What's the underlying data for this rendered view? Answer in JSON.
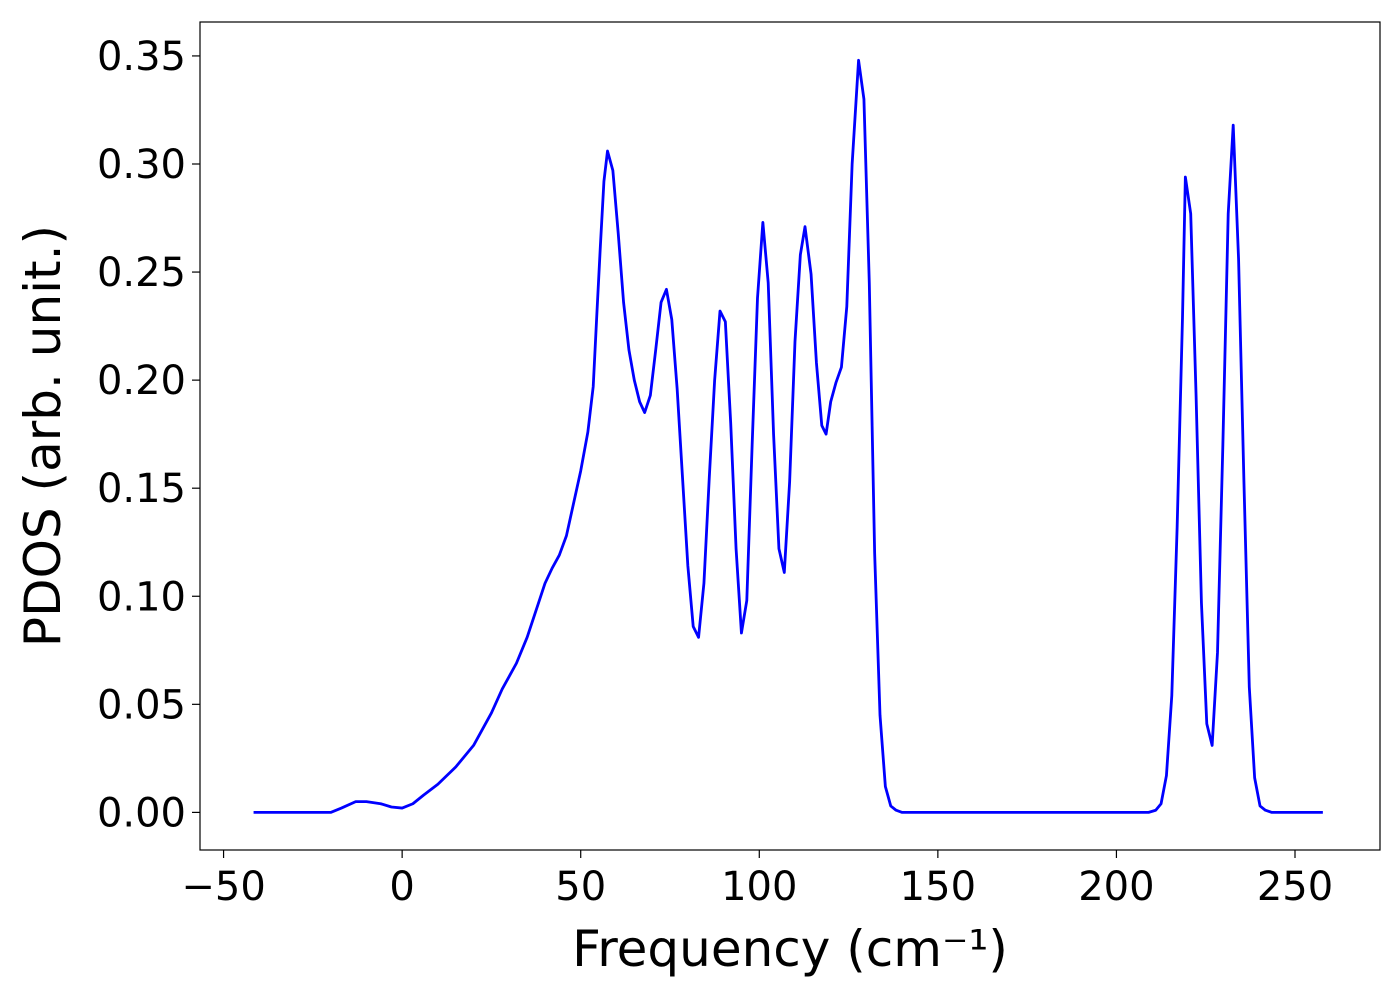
{
  "chart_data": {
    "type": "line",
    "xlabel": "Frequency (cm⁻¹)",
    "ylabel": "PDOS (arb. unit.)",
    "color": "#0000ff",
    "x": [
      -41.6,
      -20,
      -17,
      -13,
      -10,
      -6,
      -3,
      0,
      3,
      6,
      10,
      15,
      20,
      25,
      28,
      32,
      35,
      38,
      40,
      42,
      44,
      46,
      48,
      50,
      52,
      53.5,
      54.5,
      55.5,
      56.5,
      57.5,
      59,
      60.5,
      62,
      63.5,
      65,
      66.5,
      67.9,
      69.5,
      71,
      72.5,
      74,
      75.5,
      77,
      78.5,
      80,
      81.5,
      83,
      84.5,
      86,
      87.5,
      89,
      90.5,
      92,
      93.5,
      95,
      96.5,
      98,
      99.5,
      101,
      102.5,
      104,
      105.5,
      107,
      108.5,
      110,
      111.5,
      112.8,
      114.5,
      116,
      117.5,
      118.7,
      120,
      121.5,
      123,
      124.5,
      126,
      127.8,
      129.3,
      130.8,
      132.3,
      133.8,
      135.3,
      136.8,
      138.3,
      140,
      150,
      200,
      209,
      211,
      212.5,
      214,
      215.5,
      217,
      218.5,
      219.3,
      220.8,
      222.3,
      223.8,
      225.3,
      226.8,
      228.3,
      229.8,
      231.3,
      232.7,
      234.2,
      235.7,
      237.2,
      238.7,
      240.2,
      241.7,
      243.5,
      257.8
    ],
    "values": [
      0,
      0,
      0.002,
      0.005,
      0.005,
      0.004,
      0.0025,
      0.002,
      0.004,
      0.008,
      0.013,
      0.021,
      0.031,
      0.046,
      0.057,
      0.069,
      0.081,
      0.096,
      0.106,
      0.113,
      0.119,
      0.128,
      0.143,
      0.158,
      0.176,
      0.197,
      0.23,
      0.262,
      0.292,
      0.306,
      0.297,
      0.268,
      0.236,
      0.214,
      0.2,
      0.19,
      0.185,
      0.193,
      0.214,
      0.236,
      0.242,
      0.228,
      0.196,
      0.155,
      0.114,
      0.086,
      0.081,
      0.106,
      0.155,
      0.2,
      0.232,
      0.227,
      0.18,
      0.122,
      0.083,
      0.098,
      0.17,
      0.238,
      0.273,
      0.245,
      0.175,
      0.122,
      0.111,
      0.153,
      0.218,
      0.258,
      0.271,
      0.249,
      0.208,
      0.179,
      0.175,
      0.19,
      0.199,
      0.206,
      0.234,
      0.3,
      0.348,
      0.33,
      0.245,
      0.12,
      0.045,
      0.012,
      0.003,
      0.001,
      0,
      0,
      0,
      0,
      0.001,
      0.004,
      0.017,
      0.054,
      0.132,
      0.229,
      0.294,
      0.277,
      0.193,
      0.097,
      0.041,
      0.031,
      0.074,
      0.17,
      0.277,
      0.318,
      0.256,
      0.153,
      0.058,
      0.016,
      0.003,
      0.001,
      0,
      0
    ],
    "xlim": [
      -56.6,
      273.8
    ],
    "ylim": [
      -0.0174,
      0.3657
    ],
    "xticks": [
      {
        "value": -50,
        "label": "−50"
      },
      0,
      50,
      100,
      150,
      200,
      250
    ],
    "yticks": [
      {
        "value": 0,
        "label": "0.00"
      },
      {
        "value": 0.05,
        "label": "0.05"
      },
      {
        "value": 0.1,
        "label": "0.10"
      },
      {
        "value": 0.15,
        "label": "0.15"
      },
      {
        "value": 0.2,
        "label": "0.20"
      },
      {
        "value": 0.25,
        "label": "0.25"
      },
      {
        "value": 0.3,
        "label": "0.30"
      },
      {
        "value": 0.35,
        "label": "0.35"
      }
    ]
  }
}
